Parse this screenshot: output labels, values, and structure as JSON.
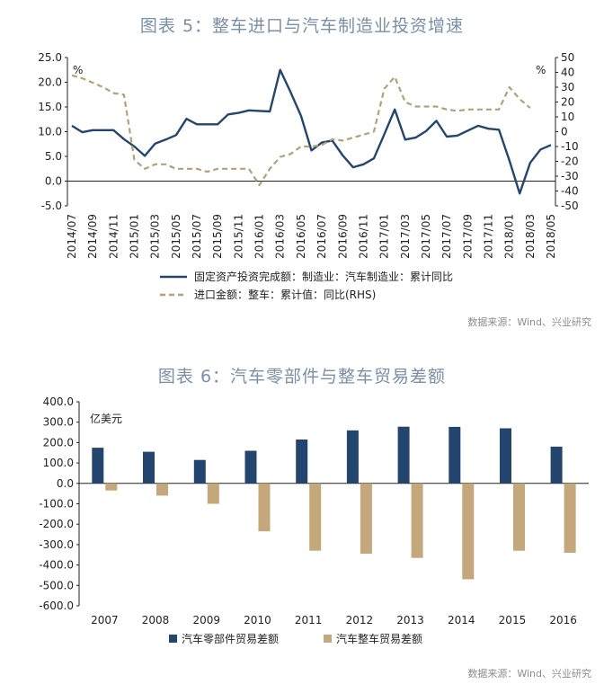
{
  "chart_data": [
    {
      "type": "line",
      "title": "图表 5：整车进口与汽车制造业投资增速",
      "x": [
        "2014/07",
        "2014/08",
        "2014/09",
        "2014/10",
        "2014/11",
        "2014/12",
        "2015/01",
        "2015/02",
        "2015/03",
        "2015/04",
        "2015/05",
        "2015/06",
        "2015/07",
        "2015/08",
        "2015/09",
        "2015/10",
        "2015/11",
        "2015/12",
        "2016/01",
        "2016/02",
        "2016/03",
        "2016/04",
        "2016/05",
        "2016/06",
        "2016/07",
        "2016/08",
        "2016/09",
        "2016/10",
        "2016/11",
        "2016/12",
        "2017/01",
        "2017/02",
        "2017/03",
        "2017/04",
        "2017/05",
        "2017/06",
        "2017/07",
        "2017/08",
        "2017/09",
        "2017/10",
        "2017/11",
        "2017/12",
        "2018/01",
        "2018/02",
        "2018/03",
        "2018/04",
        "2018/05"
      ],
      "x_tick_labels": [
        "2014/07",
        "2014/09",
        "2014/11",
        "2015/01",
        "2015/03",
        "2015/05",
        "2015/07",
        "2015/09",
        "2015/11",
        "2016/01",
        "2016/03",
        "2016/05",
        "2016/07",
        "2016/09",
        "2016/11",
        "2017/01",
        "2017/03",
        "2017/05",
        "2017/07",
        "2017/09",
        "2017/11",
        "2018/01",
        "2018/03",
        "2018/05"
      ],
      "ylim": [
        -5,
        25
      ],
      "y_ticks": [
        "25.0",
        "20.0",
        "15.0",
        "10.0",
        "5.0",
        "0.0",
        "-5.0"
      ],
      "y_unit": "%",
      "y2lim": [
        -50,
        50
      ],
      "y2_ticks": [
        "50",
        "40",
        "30",
        "20",
        "10",
        "0",
        "-10",
        "-20",
        "-30",
        "-40",
        "-50"
      ],
      "y2_unit": "%",
      "series": [
        {
          "name": "固定资产投资完成额：制造业：汽车制造业：累计同比",
          "axis": "left",
          "style": "solid",
          "color": "#24466e",
          "values": [
            11.2,
            9.9,
            10.3,
            10.3,
            10.3,
            8.5,
            7.0,
            5.1,
            7.6,
            8.4,
            9.3,
            12.6,
            11.5,
            11.5,
            11.5,
            13.5,
            13.8,
            14.3,
            14.2,
            14.1,
            22.5,
            18.0,
            13.2,
            6.2,
            7.8,
            8.2,
            5.2,
            2.8,
            3.4,
            4.6,
            9.5,
            14.5,
            8.4,
            8.8,
            10.1,
            12.2,
            9.0,
            9.2,
            10.2,
            11.2,
            10.6,
            10.4,
            4.2,
            -2.5,
            3.7,
            6.4,
            7.3
          ]
        },
        {
          "name": "进口金额：整车：累计值：同比(RHS)",
          "axis": "right",
          "style": "dashed",
          "color": "#b4a07a",
          "values": [
            38,
            36,
            33,
            30,
            26,
            25,
            -19,
            -25,
            -22,
            -22,
            -25,
            -25,
            -25,
            -27,
            -25,
            -25,
            -25,
            -25,
            -36,
            -25,
            -17,
            -15,
            -10,
            -10,
            -9,
            -5,
            -6,
            -4,
            -2,
            0,
            29,
            37,
            20,
            17,
            17,
            17,
            15,
            14,
            15,
            15,
            15,
            15,
            30,
            22,
            16,
            null,
            null
          ]
        }
      ]
    },
    {
      "type": "bar",
      "title": "图表 6：汽车零部件与整车贸易差额",
      "annotation": "亿美元",
      "categories": [
        "2007",
        "2008",
        "2009",
        "2010",
        "2011",
        "2012",
        "2013",
        "2014",
        "2015",
        "2016"
      ],
      "ylim": [
        -600,
        400
      ],
      "y_ticks": [
        "400.0",
        "300.0",
        "200.0",
        "100.0",
        "0.0",
        "-100.0",
        "-200.0",
        "-300.0",
        "-400.0",
        "-500.0",
        "-600.0"
      ],
      "series": [
        {
          "name": "汽车零部件贸易差额",
          "color": "#24466e",
          "values": [
            175,
            155,
            115,
            160,
            215,
            260,
            278,
            277,
            270,
            180
          ]
        },
        {
          "name": "汽车整车贸易差额",
          "color": "#c4a77b",
          "values": [
            -35,
            -60,
            -100,
            -235,
            -330,
            -345,
            -365,
            -470,
            -330,
            -340
          ]
        }
      ]
    }
  ],
  "sources": [
    "数据来源：Wind、兴业研究",
    "数据来源：Wind、兴业研究"
  ]
}
